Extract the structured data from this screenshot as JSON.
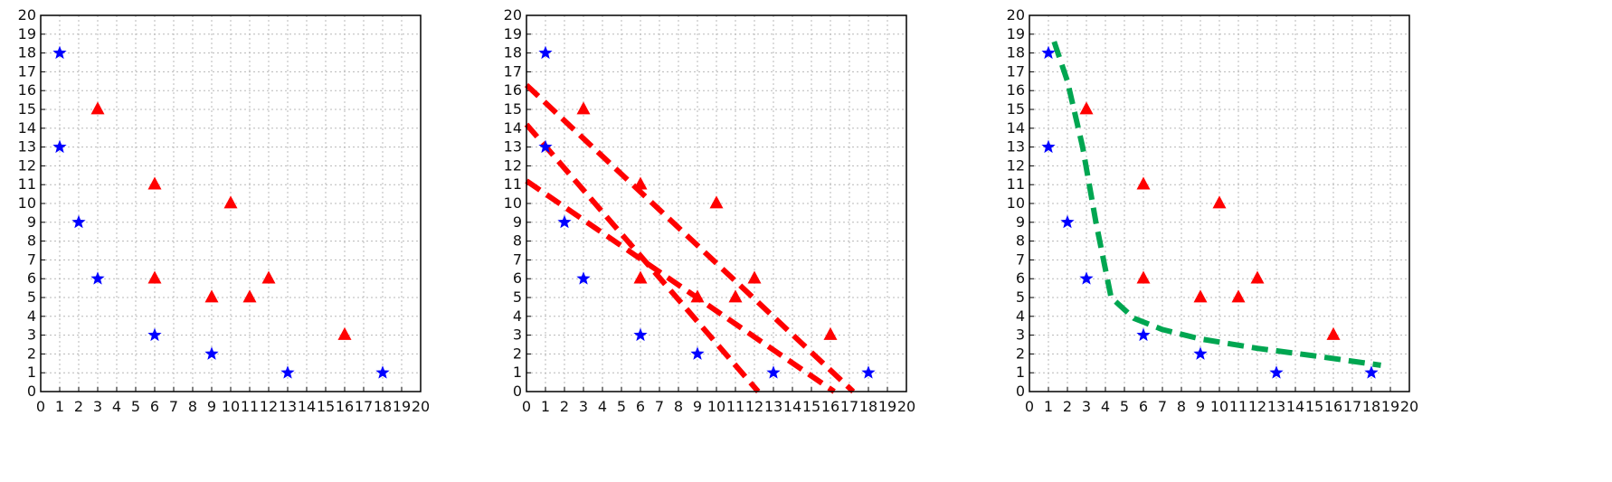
{
  "chart_data": [
    {
      "type": "scatter",
      "xlim": [
        0,
        20
      ],
      "ylim": [
        0,
        20
      ],
      "grid": true,
      "series": [
        {
          "marker": "star",
          "color": "#0000ff",
          "points": [
            [
              1,
              18
            ],
            [
              1,
              13
            ],
            [
              2,
              9
            ],
            [
              3,
              6
            ],
            [
              6,
              3
            ],
            [
              9,
              2
            ],
            [
              13,
              1
            ],
            [
              18,
              1
            ]
          ]
        },
        {
          "marker": "triangle",
          "color": "#ff0000",
          "points": [
            [
              3,
              15
            ],
            [
              6,
              11
            ],
            [
              10,
              10
            ],
            [
              6,
              6
            ],
            [
              9,
              5
            ],
            [
              11,
              5
            ],
            [
              12,
              6
            ],
            [
              16,
              3
            ]
          ]
        }
      ],
      "lines": []
    },
    {
      "type": "scatter",
      "xlim": [
        0,
        20
      ],
      "ylim": [
        0,
        20
      ],
      "grid": true,
      "series": [
        {
          "marker": "star",
          "color": "#0000ff",
          "points": [
            [
              1,
              18
            ],
            [
              1,
              13
            ],
            [
              2,
              9
            ],
            [
              3,
              6
            ],
            [
              6,
              3
            ],
            [
              9,
              2
            ],
            [
              13,
              1
            ],
            [
              18,
              1
            ]
          ]
        },
        {
          "marker": "triangle",
          "color": "#ff0000",
          "points": [
            [
              3,
              15
            ],
            [
              6,
              11
            ],
            [
              10,
              10
            ],
            [
              6,
              6
            ],
            [
              9,
              5
            ],
            [
              11,
              5
            ],
            [
              12,
              6
            ],
            [
              16,
              3
            ]
          ]
        }
      ],
      "lines": [
        {
          "color": "#ff0000",
          "style": "dashed",
          "points": [
            [
              0,
              16.3
            ],
            [
              17.2,
              0
            ]
          ]
        },
        {
          "color": "#ff0000",
          "style": "dashed",
          "points": [
            [
              0,
              14.2
            ],
            [
              12.2,
              0
            ]
          ]
        },
        {
          "color": "#ff0000",
          "style": "dashed",
          "points": [
            [
              0,
              11.2
            ],
            [
              16.2,
              0
            ]
          ]
        }
      ]
    },
    {
      "type": "scatter",
      "xlim": [
        0,
        20
      ],
      "ylim": [
        0,
        20
      ],
      "grid": true,
      "series": [
        {
          "marker": "star",
          "color": "#0000ff",
          "points": [
            [
              1,
              18
            ],
            [
              1,
              13
            ],
            [
              2,
              9
            ],
            [
              3,
              6
            ],
            [
              6,
              3
            ],
            [
              9,
              2
            ],
            [
              13,
              1
            ],
            [
              18,
              1
            ]
          ]
        },
        {
          "marker": "triangle",
          "color": "#ff0000",
          "points": [
            [
              3,
              15
            ],
            [
              6,
              11
            ],
            [
              10,
              10
            ],
            [
              6,
              6
            ],
            [
              9,
              5
            ],
            [
              11,
              5
            ],
            [
              12,
              6
            ],
            [
              16,
              3
            ]
          ]
        }
      ],
      "lines": [
        {
          "color": "#00a651",
          "style": "dashed",
          "points": [
            [
              1.3,
              18.6
            ],
            [
              2,
              16.5
            ],
            [
              2.8,
              13
            ],
            [
              3.5,
              9
            ],
            [
              4.3,
              5
            ],
            [
              5.5,
              3.9
            ],
            [
              7,
              3.3
            ],
            [
              9,
              2.8
            ],
            [
              12,
              2.3
            ],
            [
              15,
              1.9
            ],
            [
              18.5,
              1.4
            ]
          ]
        }
      ]
    }
  ]
}
